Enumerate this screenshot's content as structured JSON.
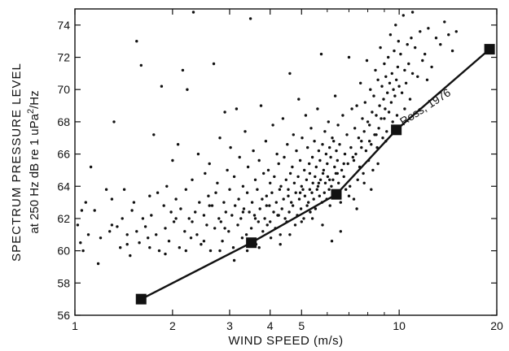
{
  "chart_data": {
    "type": "scatter",
    "title": "",
    "xlabel": "WIND SPEED (m/s)",
    "ylabel_line1": "SPECTRUM PRESSURE LEVEL",
    "ylabel_line2": "at 250 Hz dB re 1 uPa",
    "ylabel_sup": "2",
    "ylabel_suffix": "/Hz",
    "x_scale": "log",
    "xlim": [
      1,
      20
    ],
    "ylim": [
      56,
      75
    ],
    "x_ticks": [
      1,
      2,
      3,
      4,
      5,
      10,
      20
    ],
    "x_tick_labels": [
      "1",
      "2",
      "3",
      "4",
      "5",
      "10",
      "20"
    ],
    "x_minor_ticks": [
      6,
      7,
      8,
      9
    ],
    "y_ticks": [
      56,
      58,
      60,
      62,
      64,
      66,
      68,
      70,
      72,
      74
    ],
    "y_tick_labels": [
      "56",
      "58",
      "60",
      "62",
      "64",
      "66",
      "68",
      "70",
      "72",
      "74"
    ],
    "grid": false,
    "series": [
      {
        "name": "Ross, 1976",
        "kind": "line-with-markers",
        "x": [
          1.6,
          3.5,
          6.4,
          9.8,
          19.0
        ],
        "y": [
          57.0,
          60.5,
          63.5,
          67.5,
          72.5
        ]
      }
    ],
    "scatter_points": [
      [
        1.02,
        61.6
      ],
      [
        1.04,
        60.5
      ],
      [
        1.05,
        62.5
      ],
      [
        1.06,
        60.0
      ],
      [
        1.08,
        63.0
      ],
      [
        1.1,
        61.0
      ],
      [
        1.12,
        65.2
      ],
      [
        1.15,
        62.5
      ],
      [
        1.18,
        59.2
      ],
      [
        1.2,
        60.8
      ],
      [
        1.25,
        63.8
      ],
      [
        1.28,
        61.2
      ],
      [
        1.3,
        63.2
      ],
      [
        1.32,
        68.0
      ],
      [
        1.35,
        61.5
      ],
      [
        1.38,
        60.2
      ],
      [
        1.4,
        62.0
      ],
      [
        1.42,
        63.8
      ],
      [
        1.45,
        61.0
      ],
      [
        1.48,
        59.7
      ],
      [
        1.5,
        62.5
      ],
      [
        1.52,
        63.0
      ],
      [
        1.55,
        73.0
      ],
      [
        1.55,
        61.2
      ],
      [
        1.58,
        60.5
      ],
      [
        1.6,
        71.5
      ],
      [
        1.62,
        62.0
      ],
      [
        1.65,
        61.5
      ],
      [
        1.68,
        60.8
      ],
      [
        1.7,
        63.4
      ],
      [
        1.72,
        62.2
      ],
      [
        1.75,
        67.2
      ],
      [
        1.78,
        61.0
      ],
      [
        1.8,
        63.6
      ],
      [
        1.82,
        60.0
      ],
      [
        1.85,
        70.2
      ],
      [
        1.88,
        62.8
      ],
      [
        1.9,
        61.4
      ],
      [
        1.92,
        64.0
      ],
      [
        1.95,
        60.6
      ],
      [
        1.98,
        62.4
      ],
      [
        2.0,
        65.6
      ],
      [
        2.02,
        61.8
      ],
      [
        2.05,
        63.2
      ],
      [
        2.08,
        66.6
      ],
      [
        2.1,
        60.2
      ],
      [
        2.12,
        62.6
      ],
      [
        2.15,
        71.2
      ],
      [
        2.18,
        61.2
      ],
      [
        2.2,
        63.8
      ],
      [
        2.22,
        70.0
      ],
      [
        2.25,
        62.0
      ],
      [
        2.28,
        60.8
      ],
      [
        2.3,
        64.4
      ],
      [
        2.32,
        74.8
      ],
      [
        2.35,
        62.4
      ],
      [
        2.38,
        61.0
      ],
      [
        2.4,
        66.0
      ],
      [
        2.42,
        63.0
      ],
      [
        2.45,
        60.4
      ],
      [
        2.5,
        62.2
      ],
      [
        2.52,
        64.8
      ],
      [
        2.55,
        61.6
      ],
      [
        2.58,
        63.4
      ],
      [
        2.6,
        65.4
      ],
      [
        2.62,
        60.0
      ],
      [
        2.65,
        62.8
      ],
      [
        2.68,
        71.6
      ],
      [
        2.7,
        61.4
      ],
      [
        2.72,
        63.6
      ],
      [
        2.75,
        64.2
      ],
      [
        2.78,
        62.0
      ],
      [
        2.8,
        67.0
      ],
      [
        2.82,
        61.8
      ],
      [
        2.85,
        60.6
      ],
      [
        2.88,
        63.0
      ],
      [
        2.9,
        68.6
      ],
      [
        2.92,
        62.4
      ],
      [
        2.95,
        65.0
      ],
      [
        2.98,
        61.2
      ],
      [
        3.0,
        63.8
      ],
      [
        3.02,
        66.4
      ],
      [
        3.05,
        62.2
      ],
      [
        3.08,
        60.2
      ],
      [
        3.1,
        64.6
      ],
      [
        3.12,
        62.8
      ],
      [
        3.15,
        68.8
      ],
      [
        3.18,
        61.6
      ],
      [
        3.2,
        63.2
      ],
      [
        3.22,
        65.8
      ],
      [
        3.25,
        62.0
      ],
      [
        3.28,
        60.8
      ],
      [
        3.3,
        64.0
      ],
      [
        3.32,
        62.6
      ],
      [
        3.35,
        67.4
      ],
      [
        3.38,
        61.0
      ],
      [
        3.4,
        63.6
      ],
      [
        3.42,
        65.2
      ],
      [
        3.45,
        62.4
      ],
      [
        3.48,
        74.4
      ],
      [
        3.5,
        61.4
      ],
      [
        3.52,
        63.0
      ],
      [
        3.55,
        66.2
      ],
      [
        3.58,
        62.2
      ],
      [
        3.6,
        64.4
      ],
      [
        3.62,
        60.4
      ],
      [
        3.65,
        63.8
      ],
      [
        3.68,
        61.8
      ],
      [
        3.7,
        65.6
      ],
      [
        3.72,
        62.6
      ],
      [
        3.75,
        69.0
      ],
      [
        3.78,
        63.2
      ],
      [
        3.8,
        61.2
      ],
      [
        3.82,
        64.8
      ],
      [
        3.85,
        62.0
      ],
      [
        3.88,
        66.8
      ],
      [
        3.9,
        63.4
      ],
      [
        3.92,
        61.6
      ],
      [
        3.95,
        65.0
      ],
      [
        3.98,
        62.8
      ],
      [
        4.0,
        64.2
      ],
      [
        4.02,
        60.8
      ],
      [
        4.05,
        63.6
      ],
      [
        4.08,
        67.8
      ],
      [
        4.1,
        62.4
      ],
      [
        4.12,
        64.6
      ],
      [
        4.15,
        61.4
      ],
      [
        4.18,
        63.0
      ],
      [
        4.2,
        66.0
      ],
      [
        4.22,
        62.2
      ],
      [
        4.25,
        65.4
      ],
      [
        4.28,
        63.8
      ],
      [
        4.3,
        61.0
      ],
      [
        4.32,
        64.0
      ],
      [
        4.35,
        62.6
      ],
      [
        4.38,
        68.2
      ],
      [
        4.4,
        63.2
      ],
      [
        4.42,
        65.8
      ],
      [
        4.45,
        62.0
      ],
      [
        4.48,
        64.4
      ],
      [
        4.5,
        61.8
      ],
      [
        4.52,
        66.6
      ],
      [
        4.55,
        63.4
      ],
      [
        4.58,
        62.4
      ],
      [
        4.6,
        71.0
      ],
      [
        4.62,
        64.8
      ],
      [
        4.65,
        63.0
      ],
      [
        4.68,
        65.2
      ],
      [
        4.7,
        62.8
      ],
      [
        4.72,
        67.2
      ],
      [
        4.75,
        64.2
      ],
      [
        4.78,
        61.6
      ],
      [
        4.8,
        63.6
      ],
      [
        4.82,
        66.2
      ],
      [
        4.85,
        62.2
      ],
      [
        4.88,
        64.6
      ],
      [
        4.9,
        69.4
      ],
      [
        4.92,
        63.2
      ],
      [
        4.95,
        65.6
      ],
      [
        4.98,
        62.6
      ],
      [
        5.0,
        64.0
      ],
      [
        5.02,
        67.0
      ],
      [
        5.05,
        63.8
      ],
      [
        5.08,
        62.0
      ],
      [
        5.1,
        65.0
      ],
      [
        5.12,
        63.4
      ],
      [
        5.15,
        68.4
      ],
      [
        5.18,
        64.4
      ],
      [
        5.2,
        62.8
      ],
      [
        5.22,
        66.4
      ],
      [
        5.25,
        63.0
      ],
      [
        5.28,
        65.4
      ],
      [
        5.3,
        64.8
      ],
      [
        5.32,
        62.4
      ],
      [
        5.35,
        67.6
      ],
      [
        5.38,
        63.6
      ],
      [
        5.4,
        65.8
      ],
      [
        5.42,
        64.2
      ],
      [
        5.45,
        63.2
      ],
      [
        5.48,
        66.8
      ],
      [
        5.5,
        64.6
      ],
      [
        5.52,
        62.6
      ],
      [
        5.55,
        65.2
      ],
      [
        5.58,
        63.8
      ],
      [
        5.6,
        68.8
      ],
      [
        5.62,
        64.0
      ],
      [
        5.65,
        66.2
      ],
      [
        5.68,
        63.4
      ],
      [
        5.7,
        65.6
      ],
      [
        5.72,
        64.4
      ],
      [
        5.75,
        72.2
      ],
      [
        5.78,
        63.0
      ],
      [
        5.8,
        66.6
      ],
      [
        5.82,
        64.8
      ],
      [
        5.85,
        65.0
      ],
      [
        5.88,
        63.6
      ],
      [
        5.9,
        67.4
      ],
      [
        5.92,
        64.2
      ],
      [
        5.95,
        66.0
      ],
      [
        5.98,
        63.2
      ],
      [
        6.0,
        65.4
      ],
      [
        6.02,
        64.6
      ],
      [
        6.05,
        68.0
      ],
      [
        6.08,
        63.8
      ],
      [
        6.1,
        66.4
      ],
      [
        6.12,
        62.8
      ],
      [
        6.15,
        65.8
      ],
      [
        6.18,
        64.0
      ],
      [
        6.2,
        60.6
      ],
      [
        6.22,
        67.0
      ],
      [
        6.25,
        64.4
      ],
      [
        6.28,
        66.8
      ],
      [
        6.3,
        63.4
      ],
      [
        6.32,
        65.2
      ],
      [
        6.35,
        69.6
      ],
      [
        6.38,
        64.8
      ],
      [
        6.4,
        66.2
      ],
      [
        6.42,
        63.6
      ],
      [
        6.45,
        65.6
      ],
      [
        6.48,
        67.8
      ],
      [
        6.5,
        64.2
      ],
      [
        6.55,
        66.6
      ],
      [
        6.6,
        63.0
      ],
      [
        6.65,
        65.0
      ],
      [
        6.7,
        68.4
      ],
      [
        6.75,
        64.6
      ],
      [
        6.8,
        66.0
      ],
      [
        6.85,
        63.8
      ],
      [
        6.9,
        67.2
      ],
      [
        6.95,
        65.4
      ],
      [
        7.0,
        72.0
      ],
      [
        7.05,
        64.0
      ],
      [
        7.1,
        66.4
      ],
      [
        7.15,
        68.8
      ],
      [
        7.2,
        65.8
      ],
      [
        7.25,
        63.2
      ],
      [
        7.3,
        67.6
      ],
      [
        7.35,
        66.0
      ],
      [
        7.4,
        69.0
      ],
      [
        7.45,
        64.4
      ],
      [
        7.5,
        67.0
      ],
      [
        7.55,
        65.2
      ],
      [
        7.6,
        70.4
      ],
      [
        7.65,
        66.8
      ],
      [
        7.7,
        68.2
      ],
      [
        7.75,
        64.8
      ],
      [
        7.8,
        67.4
      ],
      [
        7.85,
        69.2
      ],
      [
        7.9,
        66.2
      ],
      [
        7.95,
        71.8
      ],
      [
        8.0,
        68.0
      ],
      [
        8.05,
        65.6
      ],
      [
        8.1,
        67.8
      ],
      [
        8.15,
        70.0
      ],
      [
        8.2,
        66.6
      ],
      [
        8.25,
        68.6
      ],
      [
        8.3,
        65.0
      ],
      [
        8.35,
        69.6
      ],
      [
        8.4,
        67.2
      ],
      [
        8.45,
        71.2
      ],
      [
        8.5,
        68.4
      ],
      [
        8.55,
        66.4
      ],
      [
        8.6,
        70.6
      ],
      [
        8.65,
        67.6
      ],
      [
        8.7,
        69.0
      ],
      [
        8.75,
        72.6
      ],
      [
        8.8,
        68.2
      ],
      [
        8.85,
        70.2
      ],
      [
        8.9,
        67.0
      ],
      [
        8.95,
        69.4
      ],
      [
        9.0,
        71.6
      ],
      [
        9.05,
        68.8
      ],
      [
        9.1,
        70.8
      ],
      [
        9.15,
        67.4
      ],
      [
        9.2,
        69.8
      ],
      [
        9.25,
        72.0
      ],
      [
        9.3,
        68.6
      ],
      [
        9.35,
        70.4
      ],
      [
        9.4,
        73.4
      ],
      [
        9.45,
        69.2
      ],
      [
        9.5,
        71.0
      ],
      [
        9.55,
        68.0
      ],
      [
        9.6,
        70.0
      ],
      [
        9.65,
        72.4
      ],
      [
        9.7,
        69.6
      ],
      [
        9.75,
        74.0
      ],
      [
        9.8,
        70.6
      ],
      [
        9.85,
        68.4
      ],
      [
        9.9,
        71.4
      ],
      [
        9.95,
        73.0
      ],
      [
        10.0,
        70.2
      ],
      [
        10.1,
        72.2
      ],
      [
        10.2,
        69.8
      ],
      [
        10.3,
        74.6
      ],
      [
        10.4,
        71.2
      ],
      [
        10.5,
        70.4
      ],
      [
        10.6,
        72.8
      ],
      [
        10.7,
        71.6
      ],
      [
        10.8,
        69.4
      ],
      [
        10.9,
        73.2
      ],
      [
        11.0,
        71.0
      ],
      [
        11.2,
        72.6
      ],
      [
        11.4,
        70.8
      ],
      [
        11.6,
        73.6
      ],
      [
        11.8,
        71.8
      ],
      [
        12.0,
        72.2
      ],
      [
        12.3,
        73.8
      ],
      [
        12.6,
        71.4
      ],
      [
        13.0,
        73.2
      ],
      [
        13.4,
        72.8
      ],
      [
        13.8,
        74.2
      ],
      [
        14.2,
        73.4
      ],
      [
        14.6,
        72.4
      ],
      [
        15.0,
        73.6
      ],
      [
        12.2,
        70.6
      ],
      [
        11.0,
        74.8
      ],
      [
        10.4,
        68.8
      ],
      [
        9.1,
        66.8
      ],
      [
        8.6,
        65.4
      ],
      [
        8.2,
        63.8
      ],
      [
        7.8,
        64.2
      ],
      [
        7.4,
        62.6
      ],
      [
        7.0,
        63.4
      ],
      [
        6.6,
        61.2
      ],
      [
        5.8,
        61.6
      ],
      [
        5.4,
        62.0
      ],
      [
        5.0,
        61.8
      ],
      [
        4.6,
        61.0
      ],
      [
        4.3,
        60.4
      ],
      [
        4.0,
        61.8
      ],
      [
        3.7,
        60.2
      ],
      [
        3.4,
        60.0
      ],
      [
        3.1,
        59.4
      ],
      [
        2.8,
        60.0
      ],
      [
        2.5,
        60.6
      ],
      [
        2.2,
        60.0
      ],
      [
        1.9,
        59.8
      ],
      [
        1.7,
        60.2
      ],
      [
        1.45,
        60.4
      ],
      [
        1.3,
        61.6
      ],
      [
        2.05,
        62.0
      ],
      [
        2.3,
        61.8
      ],
      [
        2.6,
        62.8
      ],
      [
        2.9,
        61.4
      ],
      [
        3.3,
        62.4
      ],
      [
        3.6,
        62.0
      ],
      [
        3.9,
        62.8
      ],
      [
        4.25,
        62.2
      ],
      [
        4.55,
        63.8
      ],
      [
        4.95,
        63.6
      ],
      [
        5.3,
        63.8
      ],
      [
        5.65,
        64.2
      ],
      [
        6.1,
        64.4
      ],
      [
        6.45,
        64.8
      ],
      [
        6.75,
        65.4
      ],
      [
        7.25,
        65.6
      ],
      [
        7.65,
        66.4
      ],
      [
        8.1,
        66.8
      ],
      [
        8.5,
        67.2
      ],
      [
        9.0,
        68.2
      ]
    ],
    "annotation": "Ross, 1976"
  }
}
